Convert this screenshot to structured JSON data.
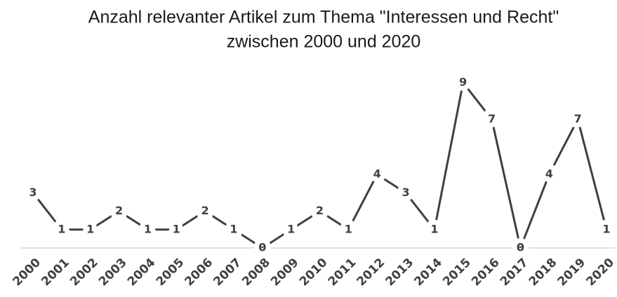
{
  "chart_data": {
    "type": "line",
    "title": [
      "Anzahl relevanter Artikel zum Thema \"Interessen und Recht\"",
      "zwischen 2000 und 2020"
    ],
    "categories": [
      "2000",
      "2001",
      "2002",
      "2003",
      "2004",
      "2005",
      "2006",
      "2007",
      "2008",
      "2009",
      "2010",
      "2011",
      "2012",
      "2013",
      "2014",
      "2015",
      "2016",
      "2017",
      "2018",
      "2019",
      "2020"
    ],
    "values": [
      3,
      1,
      1,
      2,
      1,
      1,
      2,
      1,
      0,
      1,
      2,
      1,
      4,
      3,
      1,
      9,
      7,
      0,
      4,
      7,
      1
    ],
    "color": "#404040",
    "ylim": [
      0,
      9
    ]
  }
}
